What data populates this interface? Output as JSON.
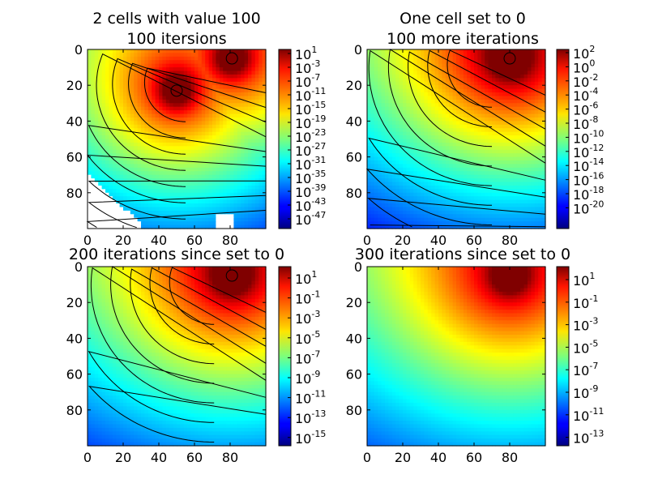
{
  "chart_data": [
    {
      "type": "heatmap",
      "title_lines": [
        "2 cells with value 100",
        "100 itersions"
      ],
      "x_ticks": [
        "0",
        "20",
        "40",
        "60",
        "80"
      ],
      "y_ticks": [
        "0",
        "20",
        "40",
        "60",
        "80"
      ],
      "xlim": [
        0,
        100
      ],
      "ylim": [
        100,
        0
      ],
      "colormap": "jet",
      "log_scale": true,
      "colorbar_exponents": [
        "1",
        "-3",
        "-7",
        "-11",
        "-15",
        "-19",
        "-23",
        "-27",
        "-31",
        "-35",
        "-39",
        "-43",
        "-47"
      ],
      "hot_cells": [
        {
          "x": 50,
          "y": 23
        },
        {
          "x": 81,
          "y": 5
        }
      ],
      "contours": true
    },
    {
      "type": "heatmap",
      "title_lines": [
        "One cell set to 0",
        "100 more iterations"
      ],
      "x_ticks": [
        "0",
        "20",
        "40",
        "60",
        "80"
      ],
      "y_ticks": [
        "0",
        "20",
        "40",
        "60",
        "80"
      ],
      "xlim": [
        0,
        100
      ],
      "ylim": [
        100,
        0
      ],
      "colormap": "jet",
      "log_scale": true,
      "colorbar_exponents": [
        "2",
        "0",
        "-2",
        "-4",
        "-6",
        "-8",
        "-10",
        "-12",
        "-14",
        "-16",
        "-18",
        "-20"
      ],
      "hot_cells": [
        {
          "x": 80,
          "y": 5
        }
      ],
      "contours": true
    },
    {
      "type": "heatmap",
      "title_lines": [
        "200 iterations since set to 0"
      ],
      "x_ticks": [
        "0",
        "20",
        "40",
        "60",
        "80"
      ],
      "y_ticks": [
        "0",
        "20",
        "40",
        "60",
        "80"
      ],
      "xlim": [
        0,
        100
      ],
      "ylim": [
        100,
        0
      ],
      "colormap": "jet",
      "log_scale": true,
      "colorbar_exponents": [
        "1",
        "-1",
        "-3",
        "-5",
        "-7",
        "-9",
        "-11",
        "-13",
        "-15"
      ],
      "hot_cells": [
        {
          "x": 81,
          "y": 5
        }
      ],
      "contours": true
    },
    {
      "type": "heatmap",
      "title_lines": [
        "300 iterations since set to 0"
      ],
      "x_ticks": [
        "0",
        "20",
        "40",
        "60",
        "80"
      ],
      "y_ticks": [
        "0",
        "20",
        "40",
        "60",
        "80"
      ],
      "xlim": [
        0,
        100
      ],
      "ylim": [
        100,
        0
      ],
      "colormap": "jet",
      "log_scale": true,
      "colorbar_exponents": [
        "1",
        "-1",
        "-3",
        "-5",
        "-7",
        "-9",
        "-11",
        "-13"
      ],
      "hot_cells": [
        {
          "x": 80,
          "y": 5
        }
      ],
      "contours": false
    }
  ]
}
